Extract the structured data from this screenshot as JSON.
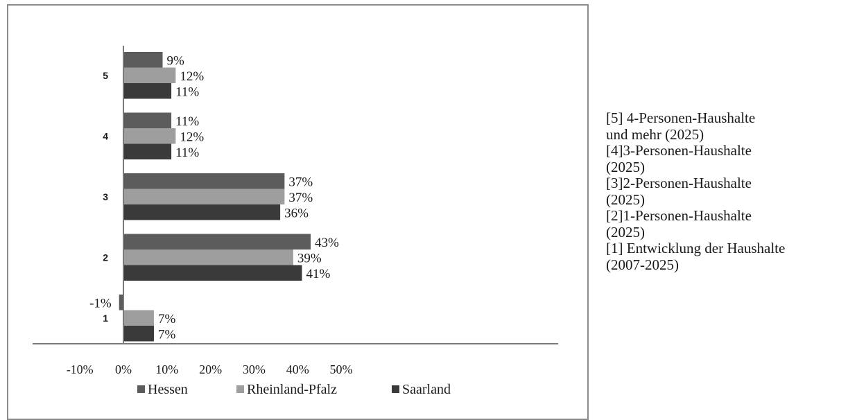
{
  "chart_data": {
    "type": "bar",
    "orientation": "horizontal",
    "categories": [
      "5",
      "4",
      "3",
      "2",
      "1"
    ],
    "series": [
      {
        "name": "Hessen",
        "values": [
          9,
          11,
          37,
          43,
          -1
        ],
        "labels": [
          "9%",
          "11%",
          "37%",
          "43%",
          "-1%"
        ]
      },
      {
        "name": "Rheinland-Pfalz",
        "values": [
          12,
          12,
          37,
          39,
          7
        ],
        "labels": [
          "12%",
          "12%",
          "37%",
          "39%",
          "7%"
        ]
      },
      {
        "name": "Saarland",
        "values": [
          11,
          11,
          36,
          41,
          7
        ],
        "labels": [
          "11%",
          "11%",
          "36%",
          "41%",
          "7%"
        ]
      }
    ],
    "xlim": [
      -10,
      50
    ],
    "xticks": [
      -10,
      0,
      10,
      20,
      30,
      40,
      50
    ],
    "xtick_labels": [
      "-10%",
      "0%",
      "10%",
      "20%",
      "30%",
      "40%",
      "50%"
    ],
    "legend_position": "bottom",
    "grid": false
  },
  "colors": {
    "Hessen": "#5c5c5c",
    "Rheinland-Pfalz": "#9e9e9e",
    "Saarland": "#3a3a3a",
    "axis": "#7a7a7a"
  },
  "side_note": {
    "lines": [
      "[5] 4-Personen-Haushalte",
      "und mehr (2025)",
      "[4]3-Personen-Haushalte",
      "(2025)",
      "[3]2-Personen-Haushalte",
      "(2025)",
      "[2]1-Personen-Haushalte",
      "(2025)",
      "[1] Entwicklung der Haushalte",
      "(2007-2025)"
    ]
  }
}
